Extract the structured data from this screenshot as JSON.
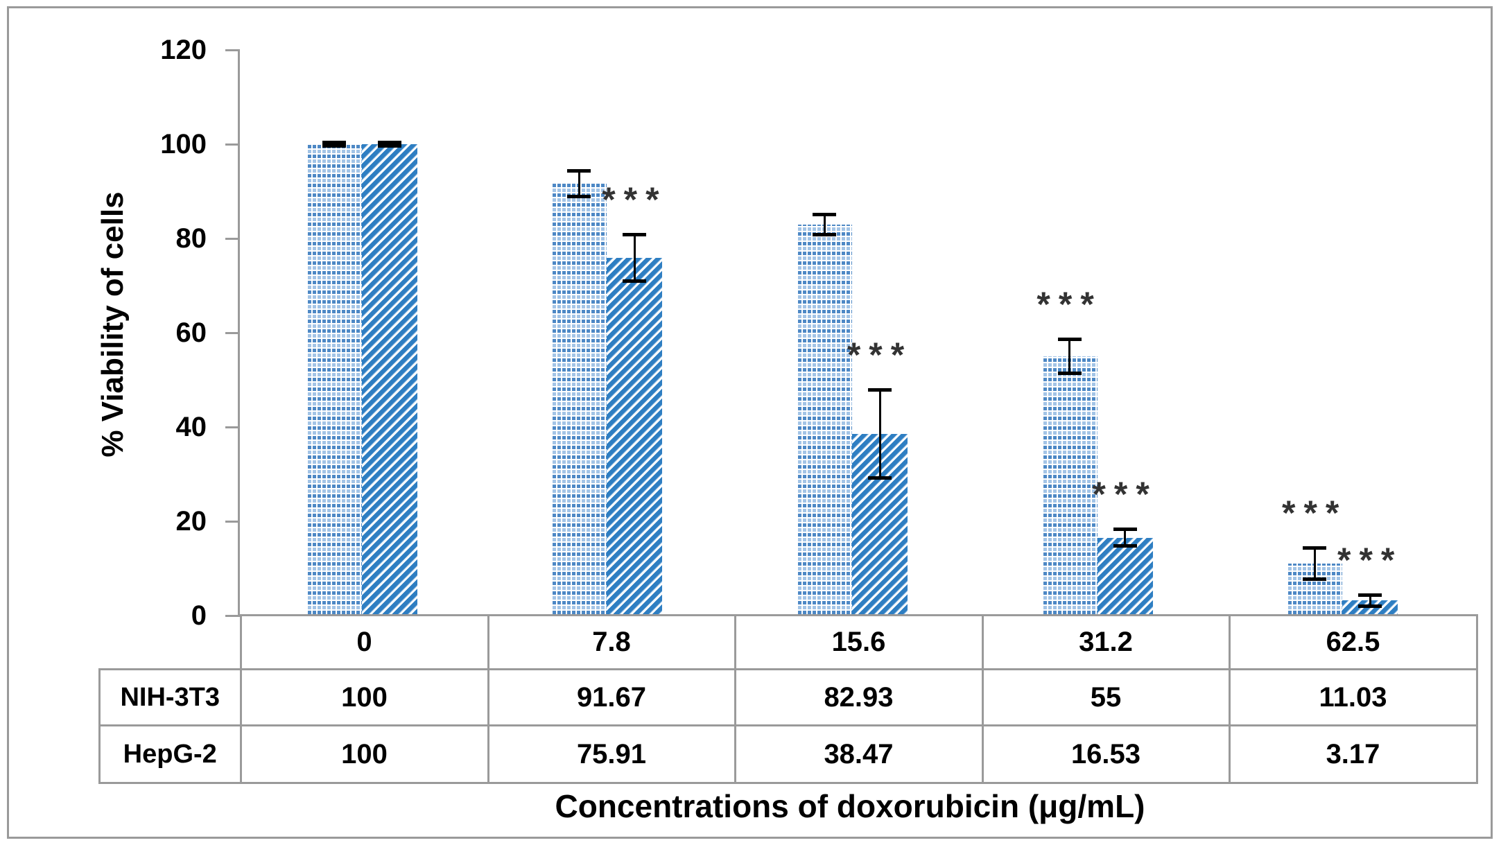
{
  "figure": {
    "type_note": "Excel-style grouped bar chart with data table below, no chart title, no gridlines",
    "background": "#ffffff",
    "border_color": "#9a9a9a"
  },
  "chart_data": {
    "type": "bar",
    "title": "",
    "xlabel": "Concentrations of doxorubicin (μg/mL)",
    "ylabel": "% Viability of cells",
    "ylim": [
      0,
      120
    ],
    "yticks": [
      "0",
      "20",
      "40",
      "60",
      "80",
      "100",
      "120"
    ],
    "grid": false,
    "legend_position": "table-row-headers",
    "categories": [
      "0",
      "7.8",
      "15.6",
      "31.2",
      "62.5"
    ],
    "series": [
      {
        "name": "NIH-3T3",
        "pattern": "dotted-grid",
        "color": "#4d88c5",
        "values": [
          100,
          91.67,
          82.93,
          55,
          11.03
        ],
        "error_bars": [
          0.4,
          2.8,
          2.2,
          3.7,
          3.4
        ],
        "significance": [
          "",
          "",
          "",
          "***",
          "***"
        ]
      },
      {
        "name": "HepG-2",
        "pattern": "diagonal-stripes",
        "color": "#2e7ec2",
        "values": [
          100,
          75.91,
          38.47,
          16.53,
          3.17
        ],
        "error_bars": [
          0.4,
          5.0,
          9.4,
          1.8,
          1.2
        ],
        "significance": [
          "",
          "***",
          "***",
          "***",
          "***"
        ]
      }
    ]
  },
  "table": {
    "header_row": [
      "0",
      "7.8",
      "15.6",
      "31.2",
      "62.5"
    ],
    "rows": [
      {
        "label": "NIH-3T3",
        "values": [
          "100",
          "91.67",
          "82.93",
          "55",
          "11.03"
        ]
      },
      {
        "label": "HepG-2",
        "values": [
          "100",
          "75.91",
          "38.47",
          "16.53",
          "3.17"
        ]
      }
    ]
  },
  "colors": {
    "axis": "#9a9a9a",
    "error_bar": "#000000",
    "significance_star": "#333333",
    "dotted_fill_dark": "#4d88c5",
    "dotted_fill_light": "#a3c4e6",
    "stripe_fill": "#2e7ec2",
    "text": "#000000"
  }
}
